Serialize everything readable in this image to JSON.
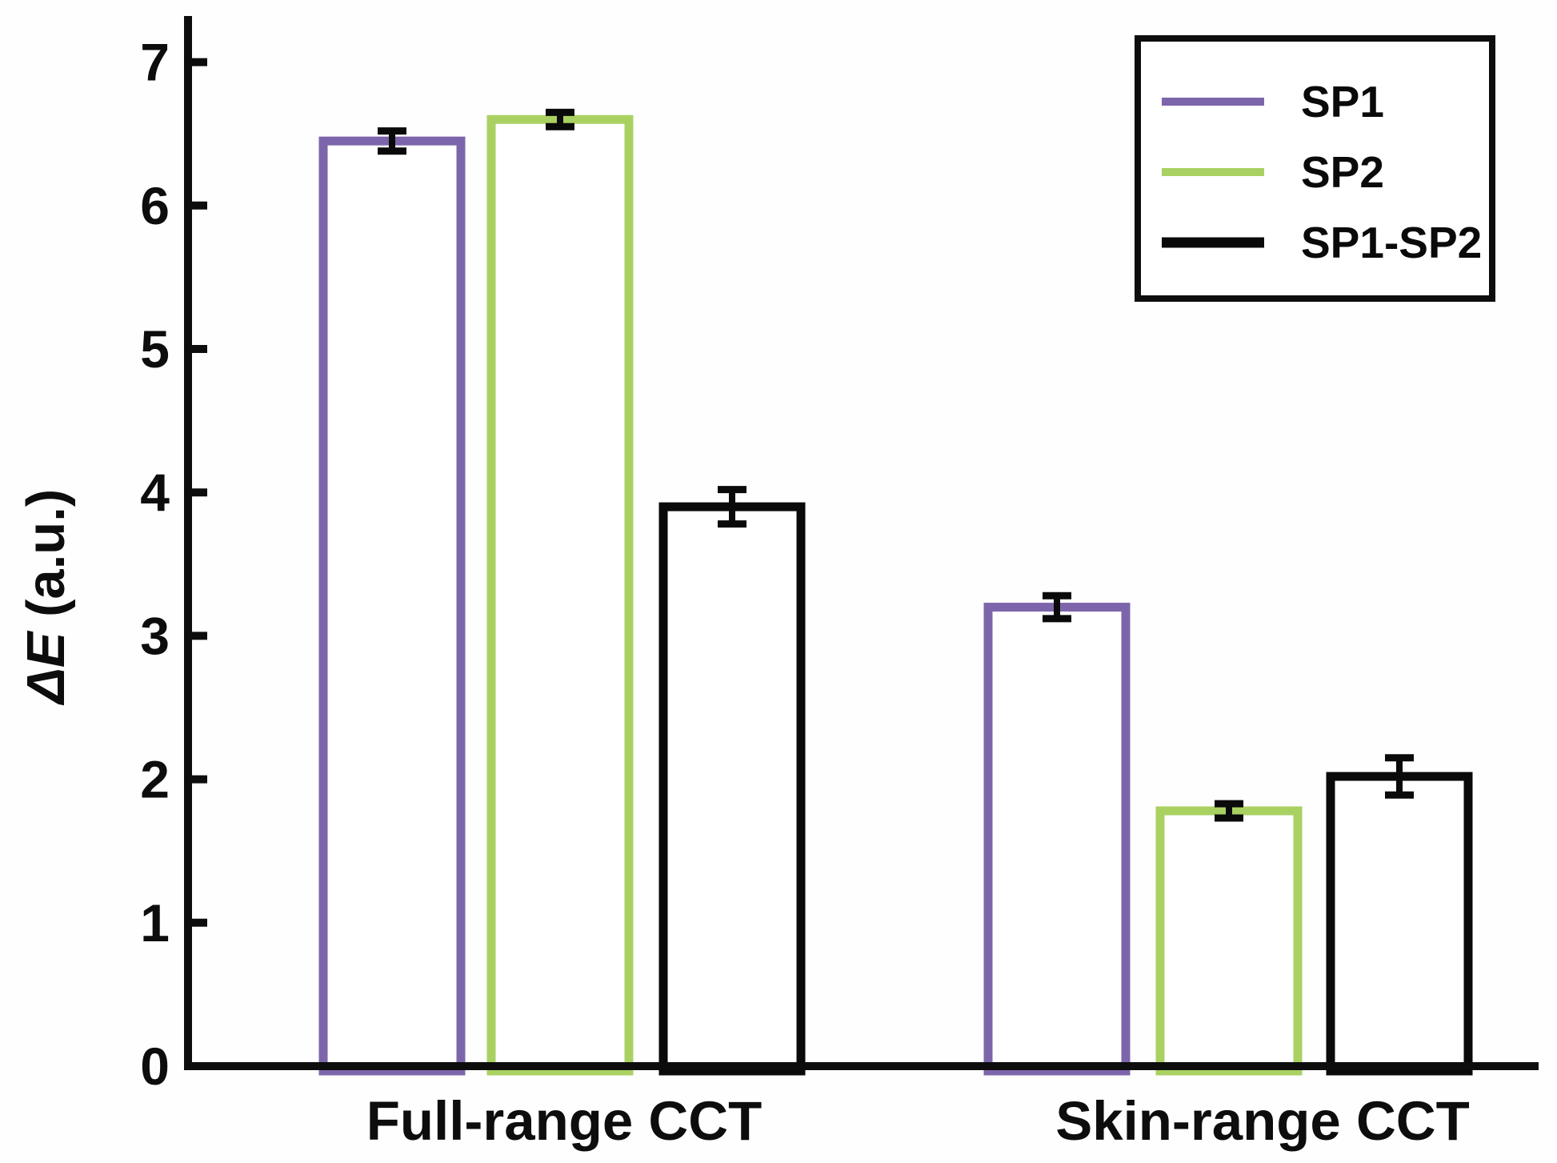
{
  "chart_data": {
    "type": "bar",
    "title": "",
    "xlabel": "",
    "ylabel": "ΔE (a.u.)",
    "ylabel_parts": {
      "italic": "ΔE",
      "rest": " (a.u.)"
    },
    "ylim": [
      0,
      7
    ],
    "yticks": [
      "0",
      "1",
      "2",
      "3",
      "4",
      "5",
      "6",
      "7"
    ],
    "grid": false,
    "bar_style": "outline-white-fill",
    "error_bar_color": "#0a0a0a",
    "axis_color": "#0d0d0d",
    "categories": [
      "Full-range CCT",
      "Skin-range CCT"
    ],
    "legend": {
      "position": "top-right",
      "entries": [
        "SP1",
        "SP2",
        "SP1-SP2"
      ]
    },
    "series": [
      {
        "name": "SP1",
        "color": "#7d65ab",
        "values": [
          6.45,
          3.2
        ],
        "errors": [
          0.07,
          0.08
        ]
      },
      {
        "name": "SP2",
        "color": "#a9d162",
        "values": [
          6.6,
          1.78
        ],
        "errors": [
          0.05,
          0.05
        ]
      },
      {
        "name": "SP1-SP2",
        "color": "#0a0a0a",
        "values": [
          3.9,
          2.02
        ],
        "errors": [
          0.12,
          0.13
        ]
      }
    ]
  }
}
